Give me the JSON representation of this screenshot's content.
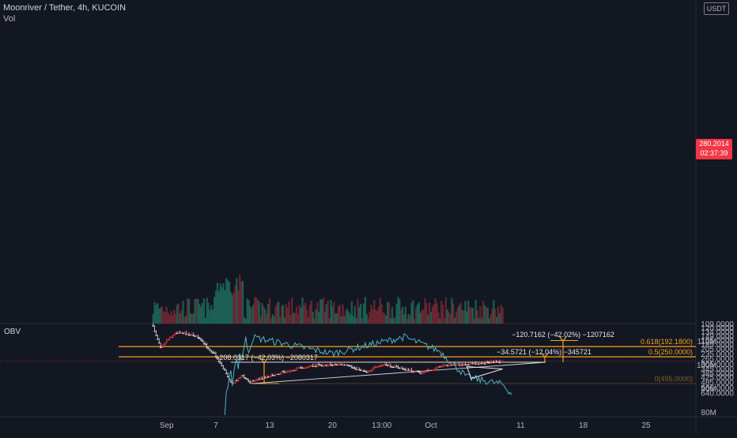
{
  "header": {
    "title": "Moonriver / Tether, 4h, KUCOIN",
    "vol_label": "Vol"
  },
  "quote_currency": "USDT",
  "price_axis": [
    "640.0000",
    "560.0000",
    "485.0000",
    "425.0000",
    "385.0000",
    "345.0000",
    "305.0000",
    "265.0000",
    "235.0000",
    "205.0000",
    "185.0000",
    "165.0000",
    "149.0000",
    "134.0000",
    "120.0000",
    "109.0000"
  ],
  "obv_axis": [
    "110M",
    "100M",
    "90M",
    "80M"
  ],
  "time_axis": [
    "Sep",
    "7",
    "13",
    "20",
    "13:00",
    "Oct",
    "11",
    "18",
    "25"
  ],
  "current_price": {
    "price": "280.2014",
    "countdown": "02:37:39"
  },
  "fib_levels": [
    {
      "label": "0(495.0000)",
      "value": 495.0
    },
    {
      "label": "0.5(250.0000)",
      "value": 250.0
    },
    {
      "label": "0.618(192.1800)",
      "value": 192.18
    }
  ],
  "measure_labels": [
    "−208.0317 (−42.03%) −2080317",
    "−34.5721 (−12.04%) −345721",
    "−120.7162 (−42.02%) −1207162"
  ],
  "obv_label": "OBV",
  "colors": {
    "up": "#e6e6e6",
    "down": "#f23645",
    "fib": "#f7a21b",
    "obv": "#4fb3bf",
    "measure": "#1e4a7a",
    "bg": "#131722"
  },
  "chart_data": {
    "type": "candlestick",
    "title": "Moonriver / Tether, 4h, KUCOIN",
    "price_scale": "log",
    "ylim": [
      100,
      640
    ],
    "x_ticks": [
      "Sep",
      "7",
      "13",
      "20",
      "13:00",
      "Oct",
      "11",
      "18",
      "25"
    ],
    "price_path_keypoints": [
      {
        "t": "Aug 31",
        "price": 105
      },
      {
        "t": "Sep 1",
        "price": 190
      },
      {
        "t": "Sep 2",
        "price": 150
      },
      {
        "t": "Sep 3",
        "price": 130
      },
      {
        "t": "Sep 5",
        "price": 145
      },
      {
        "t": "Sep 6",
        "price": 185
      },
      {
        "t": "Sep 7",
        "price": 230
      },
      {
        "t": "Sep 8",
        "price": 330
      },
      {
        "t": "Sep 9",
        "price": 495
      },
      {
        "t": "Sep 10",
        "price": 400
      },
      {
        "t": "Sep 11",
        "price": 470
      },
      {
        "t": "Sep 13",
        "price": 405
      },
      {
        "t": "Sep 16",
        "price": 340
      },
      {
        "t": "Sep 18",
        "price": 310
      },
      {
        "t": "Sep 21",
        "price": 300
      },
      {
        "t": "Sep 24",
        "price": 360
      },
      {
        "t": "Sep 26",
        "price": 300
      },
      {
        "t": "Sep 30",
        "price": 375
      },
      {
        "t": "Oct 3",
        "price": 305
      },
      {
        "t": "Oct 6",
        "price": 295
      },
      {
        "t": "Oct 9",
        "price": 280.2
      }
    ],
    "obv_keypoints": [
      {
        "t": "Sep 8",
        "obv_m": 80
      },
      {
        "t": "Sep 9",
        "obv_m": 100
      },
      {
        "t": "Sep 11",
        "obv_m": 112
      },
      {
        "t": "Sep 20",
        "obv_m": 105
      },
      {
        "t": "Sep 28",
        "obv_m": 112
      },
      {
        "t": "Oct 2",
        "obv_m": 106
      },
      {
        "t": "Oct 5",
        "obv_m": 95
      },
      {
        "t": "Oct 9",
        "obv_m": 92
      },
      {
        "t": "Oct 10",
        "obv_m": 88
      }
    ],
    "obv_ylim": [
      78,
      116
    ],
    "current_price": 280.2014
  }
}
